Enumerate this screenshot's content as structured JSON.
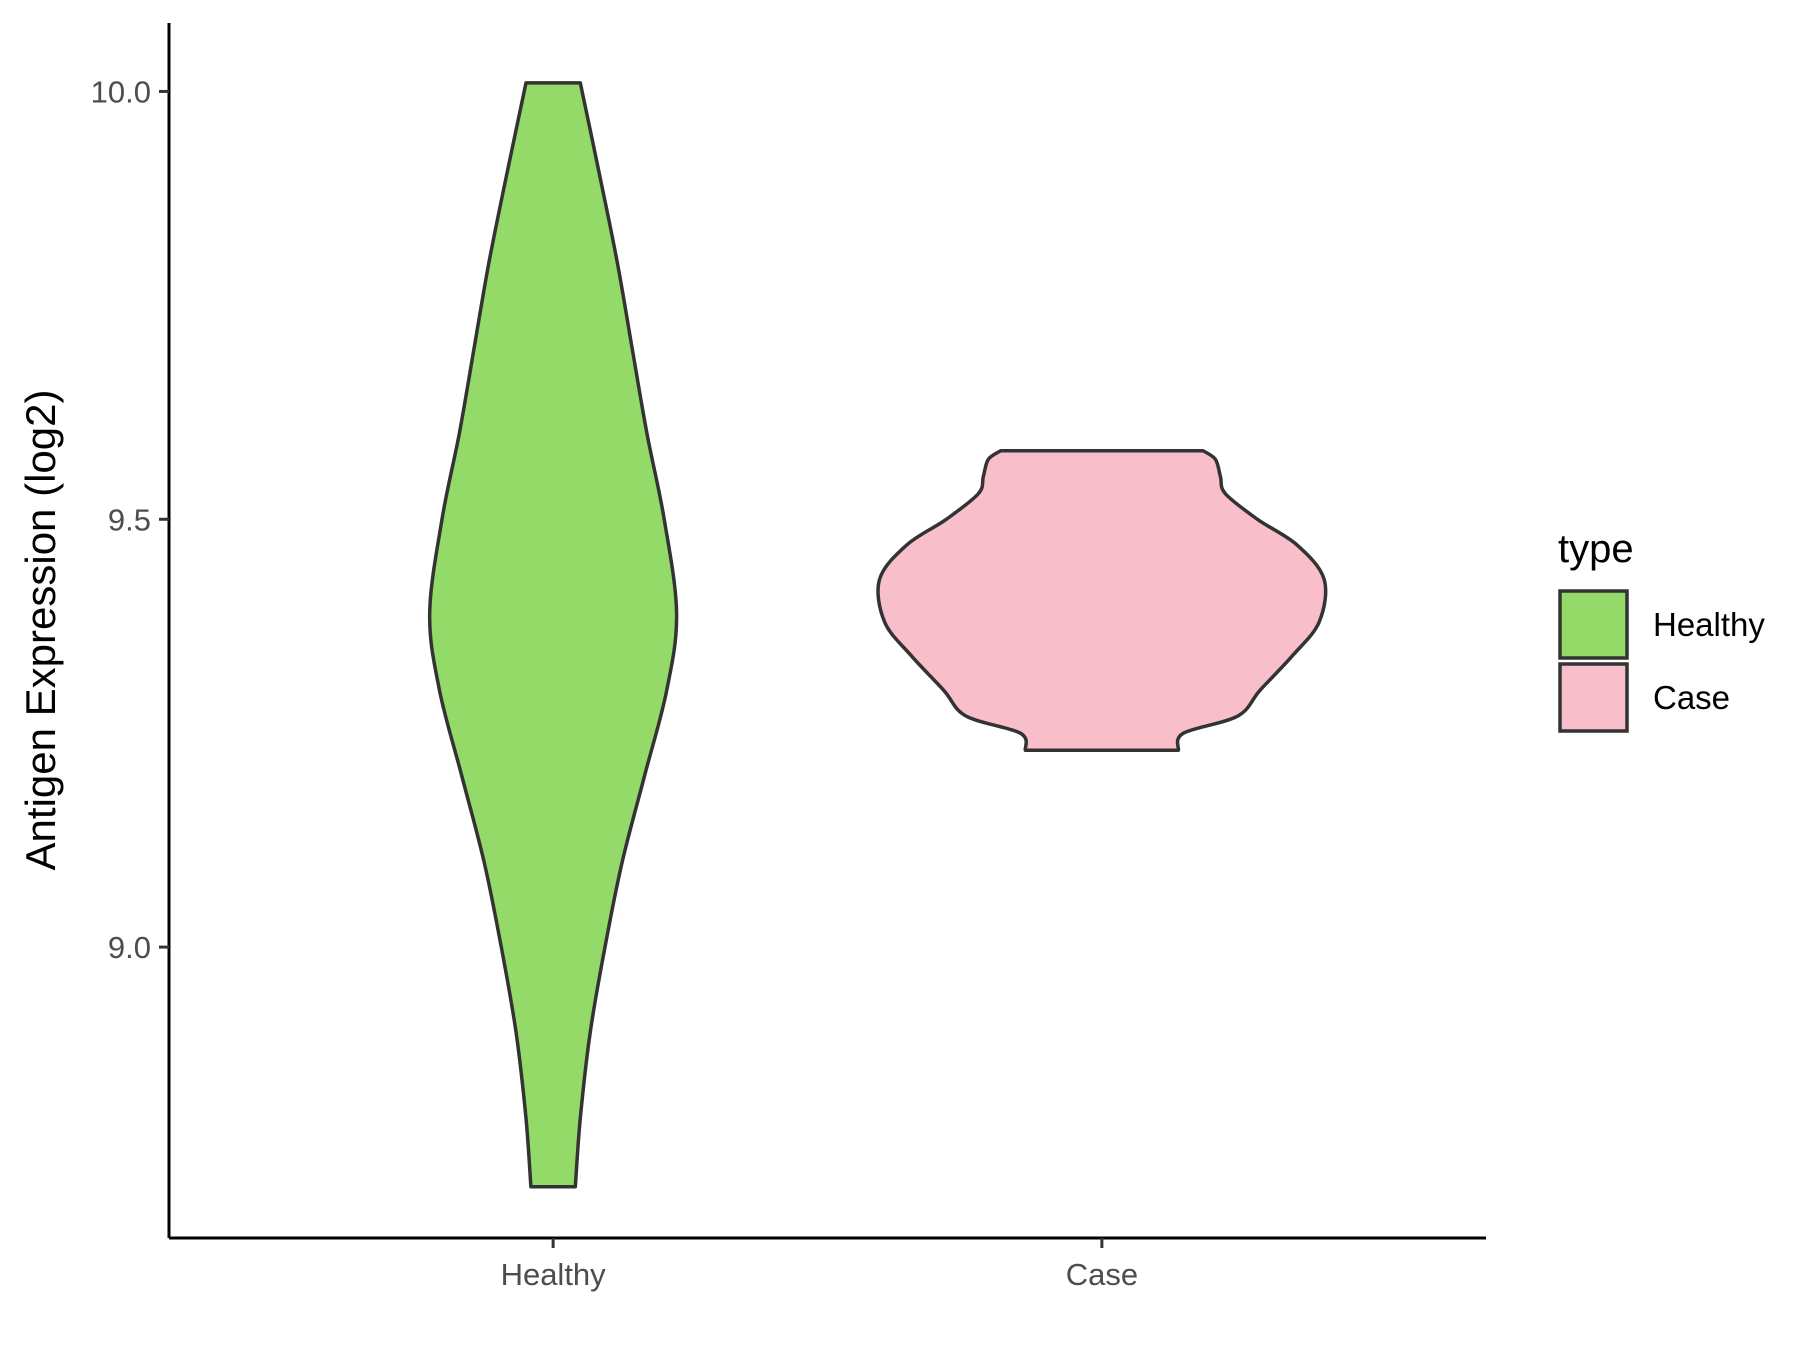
{
  "chart_data": {
    "type": "violin",
    "title": "",
    "xlabel": "",
    "ylabel": "Antigen Expression (log2)",
    "ylim": [
      8.66,
      10.08
    ],
    "y_ticks": [
      9.0,
      9.5,
      10.0
    ],
    "y_tick_labels": [
      "9.0",
      "9.5",
      "10.0"
    ],
    "categories": [
      "Healthy",
      "Case"
    ],
    "grid": false,
    "legend": {
      "title": "type",
      "position": "right",
      "entries": [
        {
          "label": "Healthy",
          "color": "#93DA69"
        },
        {
          "label": "Case",
          "color": "#F8BFCA"
        }
      ]
    },
    "series": [
      {
        "name": "Healthy",
        "color": "#93DA69",
        "min": 8.72,
        "max": 10.01,
        "density": [
          [
            8.72,
            0.09
          ],
          [
            8.8,
            0.11
          ],
          [
            8.9,
            0.15
          ],
          [
            9.0,
            0.21
          ],
          [
            9.1,
            0.28
          ],
          [
            9.2,
            0.37
          ],
          [
            9.3,
            0.46
          ],
          [
            9.39,
            0.5
          ],
          [
            9.5,
            0.45
          ],
          [
            9.6,
            0.38
          ],
          [
            9.7,
            0.32
          ],
          [
            9.8,
            0.26
          ],
          [
            9.9,
            0.19
          ],
          [
            10.01,
            0.11
          ]
        ]
      },
      {
        "name": "Case",
        "color": "#F8BFCA",
        "min": 9.23,
        "max": 9.58,
        "density": [
          [
            9.23,
            0.31
          ],
          [
            9.25,
            0.33
          ],
          [
            9.27,
            0.55
          ],
          [
            9.3,
            0.64
          ],
          [
            9.34,
            0.77
          ],
          [
            9.38,
            0.88
          ],
          [
            9.43,
            0.9
          ],
          [
            9.47,
            0.79
          ],
          [
            9.5,
            0.63
          ],
          [
            9.53,
            0.5
          ],
          [
            9.55,
            0.48
          ],
          [
            9.57,
            0.46
          ],
          [
            9.58,
            0.41
          ]
        ]
      }
    ]
  }
}
